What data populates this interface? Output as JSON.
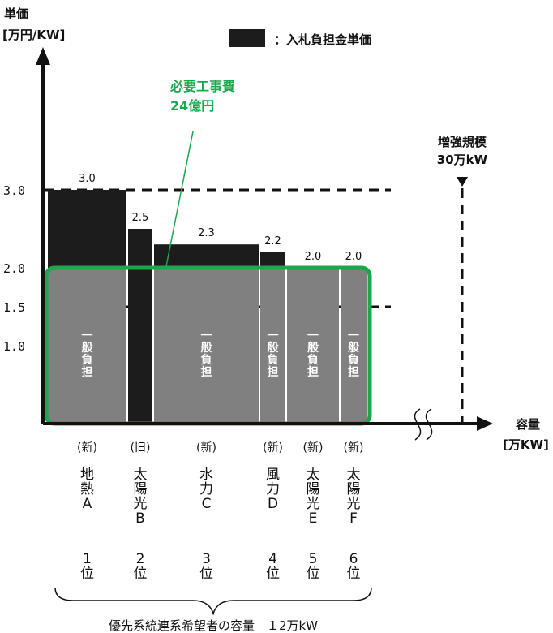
{
  "chart_data": {
    "type": "bar",
    "ylabel": "単価",
    "yunit": "[万円/KW]",
    "xlabel": "容量",
    "xunit": "[万KW]",
    "legend": {
      "label": "：入札負担金単価",
      "color": "#1c1c1c"
    },
    "y_ticks": [
      {
        "value": 3.0,
        "label": "3.0"
      },
      {
        "value": 2.0,
        "label": "2.0"
      },
      {
        "value": 1.5,
        "label": "1.5"
      },
      {
        "value": 1.0,
        "label": "1.0"
      }
    ],
    "reference_lines": [
      {
        "value": 3.0,
        "style": "dashed"
      },
      {
        "value": 1.5,
        "style": "dashed"
      }
    ],
    "general_share_label": "一般負担",
    "general_share_threshold": 2.0,
    "bars": [
      {
        "status": "(新)",
        "name": "地熱A",
        "rank": "1位",
        "value": 3.0,
        "value_label": "3.0"
      },
      {
        "status": "(旧)",
        "name": "太陽光B",
        "rank": "2位",
        "value": 2.5,
        "value_label": "2.5"
      },
      {
        "status": "(新)",
        "name": "水力C",
        "rank": "3位",
        "value": 2.3,
        "value_label": "2.3"
      },
      {
        "status": "(新)",
        "name": "風力D",
        "rank": "4位",
        "value": 2.2,
        "value_label": "2.2"
      },
      {
        "status": "(新)",
        "name": "太陽光E",
        "rank": "5位",
        "value": 2.0,
        "value_label": "2.0"
      },
      {
        "status": "(新)",
        "name": "太陽光F",
        "rank": "6位",
        "value": 2.0,
        "value_label": "2.0"
      }
    ],
    "annotation_cost": {
      "line1": "必要工事費",
      "line2": "24億円"
    },
    "annotation_capacity": {
      "line1": "増強規模",
      "line2": "30万kW"
    },
    "bracket_label": "優先系統連系希望者の容量　１2万kW",
    "colors": {
      "bar": "#1c1c1c",
      "general": "#808080",
      "highlight": "#19a84b"
    }
  }
}
